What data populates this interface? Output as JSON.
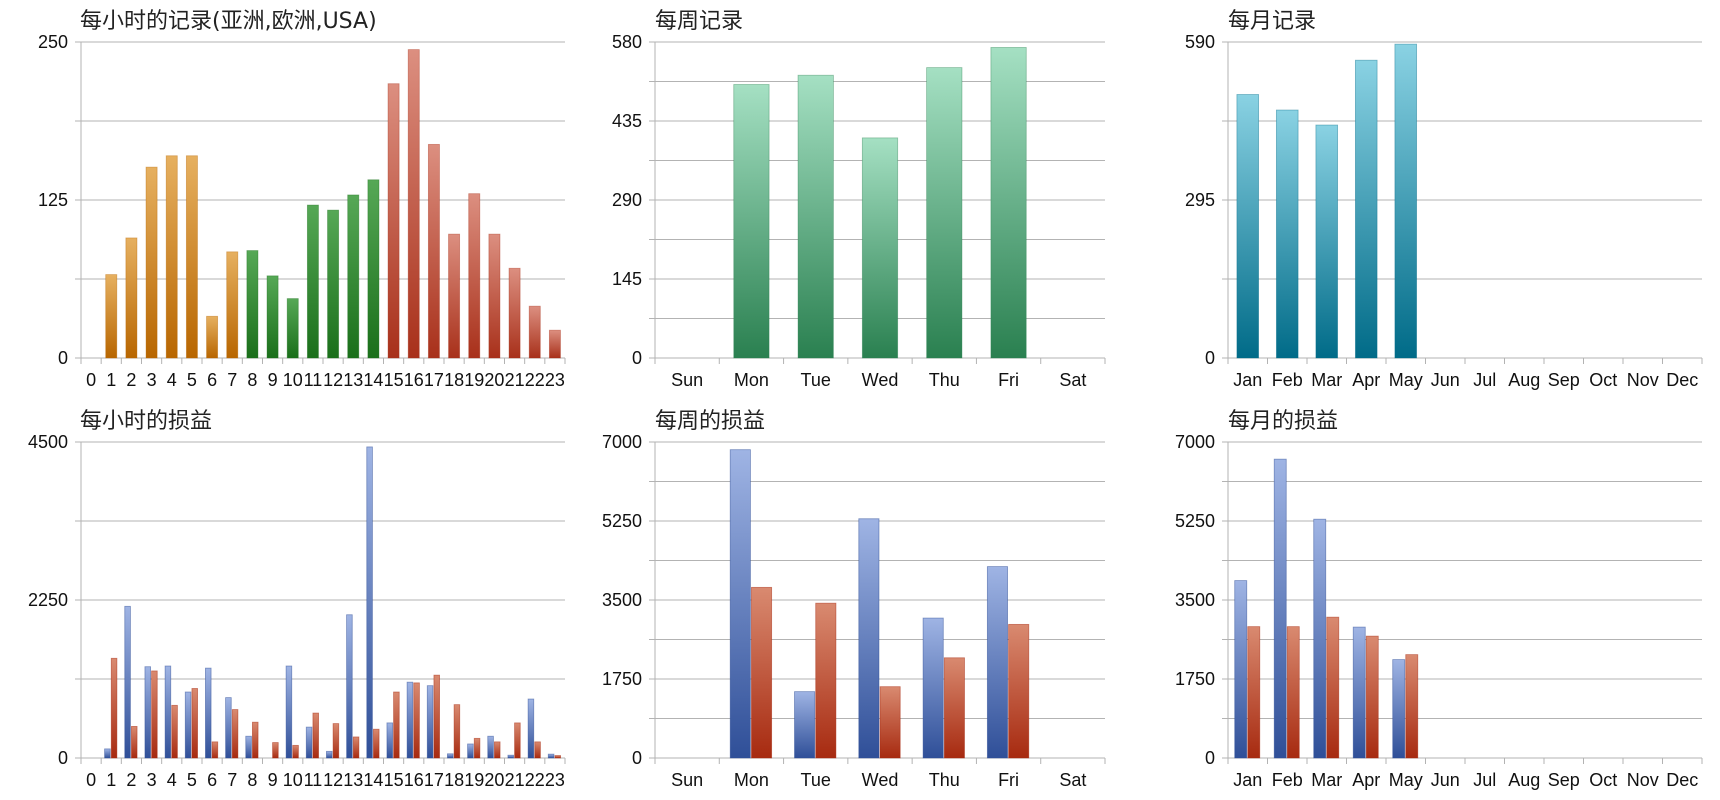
{
  "chart_data": [
    {
      "type": "bar",
      "title": "每小时的记录(亚洲,欧洲,USA)",
      "categories": [
        "0",
        "1",
        "2",
        "3",
        "4",
        "5",
        "6",
        "7",
        "8",
        "9",
        "10",
        "11",
        "12",
        "13",
        "14",
        "15",
        "16",
        "17",
        "18",
        "19",
        "20",
        "21",
        "22",
        "23"
      ],
      "values": [
        0,
        66,
        95,
        151,
        160,
        160,
        33,
        84,
        85,
        65,
        47,
        121,
        117,
        129,
        141,
        217,
        244,
        169,
        98,
        130,
        98,
        71,
        41,
        22
      ],
      "ylim": [
        0,
        250
      ],
      "yticks": [
        0,
        125,
        250
      ],
      "colors": [
        "#b86600",
        "#b86600",
        "#b86600",
        "#b86600",
        "#b86600",
        "#b86600",
        "#b86600",
        "#b86600",
        "#1a6f1a",
        "#1a6f1a",
        "#1a6f1a",
        "#1a6f1a",
        "#1a6f1a",
        "#1a6f1a",
        "#1a6f1a",
        "#a8301a",
        "#a8301a",
        "#a8301a",
        "#a8301a",
        "#a8301a",
        "#a8301a",
        "#a8301a",
        "#a8301a",
        "#a8301a"
      ],
      "color_tops": [
        "#e6b060",
        "#e6b060",
        "#e6b060",
        "#e6b060",
        "#e6b060",
        "#e6b060",
        "#e6b060",
        "#e6b060",
        "#56a856",
        "#56a856",
        "#56a856",
        "#56a856",
        "#56a856",
        "#56a856",
        "#56a856",
        "#dc8f80",
        "#dc8f80",
        "#dc8f80",
        "#dc8f80",
        "#dc8f80",
        "#dc8f80",
        "#dc8f80",
        "#dc8f80",
        "#dc8f80"
      ]
    },
    {
      "type": "bar",
      "title": "每周记录",
      "categories": [
        "Sun",
        "Mon",
        "Tue",
        "Wed",
        "Thu",
        "Fri",
        "Sat"
      ],
      "values": [
        0,
        502,
        519,
        404,
        533,
        570,
        0
      ],
      "ylim": [
        0,
        580
      ],
      "yticks": [
        0,
        145,
        290,
        435,
        580
      ],
      "color": "#2a8050",
      "color_top": "#a5e0c3"
    },
    {
      "type": "bar",
      "title": "每月记录",
      "categories": [
        "Jan",
        "Feb",
        "Mar",
        "Apr",
        "May",
        "Jun",
        "Jul",
        "Aug",
        "Sep",
        "Oct",
        "Nov",
        "Dec"
      ],
      "values": [
        492,
        463,
        435,
        556,
        586,
        0,
        0,
        0,
        0,
        0,
        0,
        0
      ],
      "ylim": [
        0,
        590
      ],
      "yticks": [
        0,
        295,
        590
      ],
      "color": "#006b88",
      "color_top": "#8ad2e3"
    },
    {
      "type": "bar",
      "title": "每小时的损益",
      "categories": [
        "0",
        "1",
        "2",
        "3",
        "4",
        "5",
        "6",
        "7",
        "8",
        "9",
        "10",
        "11",
        "12",
        "13",
        "14",
        "15",
        "16",
        "17",
        "18",
        "19",
        "20",
        "21",
        "22",
        "23"
      ],
      "series": [
        {
          "values": [
            0,
            130,
            2160,
            1300,
            1310,
            940,
            1280,
            860,
            310,
            0,
            1310,
            440,
            95,
            2040,
            4430,
            500,
            1080,
            1030,
            60,
            200,
            310,
            40,
            840,
            55
          ]
        },
        {
          "values": [
            0,
            1420,
            450,
            1240,
            750,
            990,
            230,
            690,
            510,
            220,
            180,
            640,
            490,
            300,
            410,
            940,
            1070,
            1180,
            760,
            280,
            230,
            500,
            230,
            35
          ]
        }
      ],
      "ylim": [
        0,
        4500
      ],
      "yticks": [
        0,
        2250,
        4500
      ],
      "colors": [
        "#2f4f98",
        "#a72a10"
      ],
      "color_tops": [
        "#9fb4e4",
        "#d98a70"
      ]
    },
    {
      "type": "bar",
      "title": "每周的损益",
      "categories": [
        "Sun",
        "Mon",
        "Tue",
        "Wed",
        "Thu",
        "Fri",
        "Sat"
      ],
      "series": [
        {
          "values": [
            0,
            6830,
            1470,
            5300,
            3100,
            4240,
            0
          ]
        },
        {
          "values": [
            0,
            3780,
            3430,
            1580,
            2220,
            2960,
            0
          ]
        }
      ],
      "ylim": [
        0,
        7000
      ],
      "yticks": [
        0,
        1750,
        3500,
        5250,
        7000
      ],
      "colors": [
        "#2f4f98",
        "#a72a10"
      ],
      "color_tops": [
        "#9fb4e4",
        "#d98a70"
      ]
    },
    {
      "type": "bar",
      "title": "每月的损益",
      "categories": [
        "Jan",
        "Feb",
        "Mar",
        "Apr",
        "May",
        "Jun",
        "Jul",
        "Aug",
        "Sep",
        "Oct",
        "Nov",
        "Dec"
      ],
      "series": [
        {
          "values": [
            3930,
            6620,
            5290,
            2900,
            2180,
            0,
            0,
            0,
            0,
            0,
            0,
            0
          ]
        },
        {
          "values": [
            2910,
            2910,
            3120,
            2700,
            2290,
            0,
            0,
            0,
            0,
            0,
            0,
            0
          ]
        }
      ],
      "ylim": [
        0,
        7000
      ],
      "yticks": [
        0,
        1750,
        3500,
        5250,
        7000
      ],
      "colors": [
        "#2f4f98",
        "#a72a10"
      ],
      "color_tops": [
        "#9fb4e4",
        "#d98a70"
      ]
    }
  ]
}
